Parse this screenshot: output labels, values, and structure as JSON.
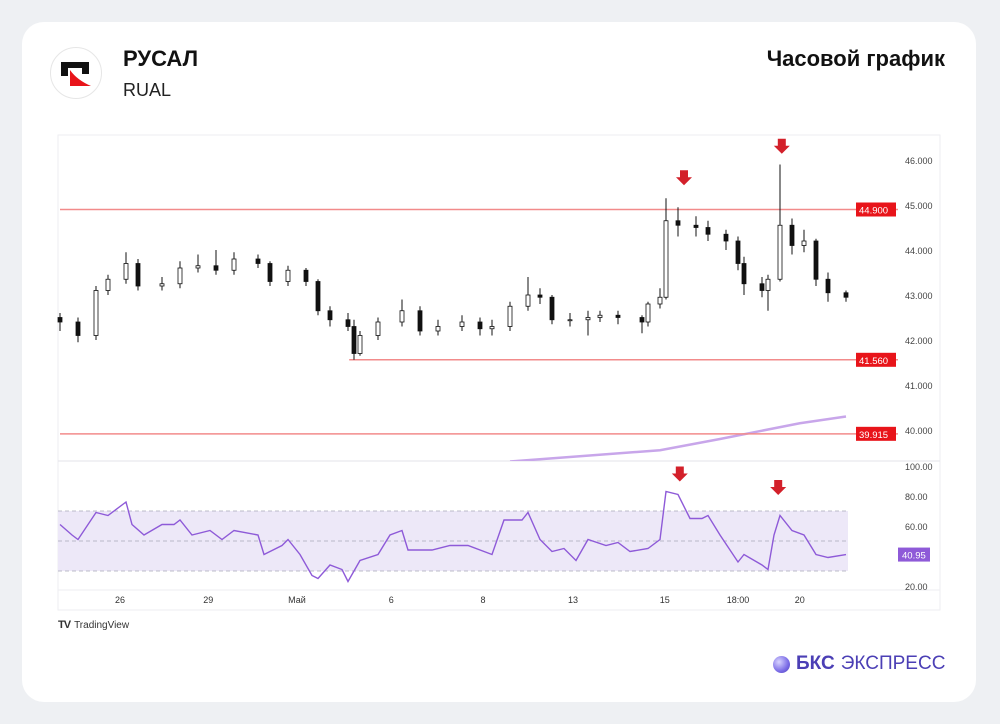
{
  "header": {
    "company": "РУСАЛ",
    "ticker": "RUAL",
    "chart_title": "Часовой график"
  },
  "footer": {
    "tradingview": "TradingView",
    "brand_bold": "БКС",
    "brand_rest": "ЭКСПРЕСС"
  },
  "colors": {
    "level_line": "#f28b8b",
    "level_label": "#e8141a",
    "rsi_line": "#8e5ad8",
    "ma_line": "#c8a6ea",
    "arrow": "#d3202a",
    "rsi_band": "#ede8f8"
  },
  "chart_data": {
    "type": "candlestick",
    "title": "Часовой график",
    "x_domain": [
      0,
      131
    ],
    "x_ticks": [
      {
        "t": 10,
        "label": "26"
      },
      {
        "t": 24.7,
        "label": "29"
      },
      {
        "t": 39.5,
        "label": "Май"
      },
      {
        "t": 55.2,
        "label": "6"
      },
      {
        "t": 70.5,
        "label": "8"
      },
      {
        "t": 85.5,
        "label": "13"
      },
      {
        "t": 100.8,
        "label": "15"
      },
      {
        "t": 113,
        "label": "18:00"
      },
      {
        "t": 123.3,
        "label": "20"
      }
    ],
    "price_axis": {
      "ylim": [
        39.4,
        46.55
      ],
      "ticks": [
        "46.000",
        "45.000",
        "44.000",
        "43.000",
        "42.000",
        "41.000",
        "40.000"
      ]
    },
    "candles": [
      [
        0,
        42.5,
        42.6,
        42.2,
        42.4
      ],
      [
        3,
        42.4,
        42.5,
        41.95,
        42.1
      ],
      [
        6,
        42.1,
        43.2,
        42.0,
        43.1
      ],
      [
        8,
        43.1,
        43.45,
        43.0,
        43.35
      ],
      [
        11,
        43.35,
        43.95,
        43.25,
        43.7
      ],
      [
        13,
        43.7,
        43.8,
        43.1,
        43.2
      ],
      [
        17,
        43.2,
        43.4,
        43.1,
        43.25
      ],
      [
        20,
        43.25,
        43.75,
        43.15,
        43.6
      ],
      [
        23,
        43.6,
        43.9,
        43.5,
        43.65
      ],
      [
        26,
        43.65,
        44.0,
        43.45,
        43.55
      ],
      [
        29,
        43.55,
        43.95,
        43.45,
        43.8
      ],
      [
        33,
        43.8,
        43.9,
        43.6,
        43.7
      ],
      [
        35,
        43.7,
        43.75,
        43.2,
        43.3
      ],
      [
        38,
        43.3,
        43.65,
        43.2,
        43.55
      ],
      [
        41,
        43.55,
        43.6,
        43.2,
        43.3
      ],
      [
        43,
        43.3,
        43.35,
        42.55,
        42.65
      ],
      [
        45,
        42.65,
        42.75,
        42.3,
        42.45
      ],
      [
        48,
        42.45,
        42.6,
        42.2,
        42.3
      ],
      [
        49,
        42.3,
        42.45,
        41.56,
        41.7
      ],
      [
        50,
        41.7,
        42.2,
        41.65,
        42.1
      ],
      [
        53,
        42.1,
        42.5,
        42.0,
        42.4
      ],
      [
        57,
        42.4,
        42.9,
        42.3,
        42.65
      ],
      [
        60,
        42.65,
        42.75,
        42.1,
        42.2
      ],
      [
        63,
        42.2,
        42.45,
        42.1,
        42.3
      ],
      [
        67,
        42.3,
        42.55,
        42.2,
        42.4
      ],
      [
        70,
        42.4,
        42.5,
        42.1,
        42.25
      ],
      [
        72,
        42.25,
        42.45,
        42.1,
        42.3
      ],
      [
        75,
        42.3,
        42.85,
        42.2,
        42.75
      ],
      [
        78,
        42.75,
        43.4,
        42.65,
        43.0
      ],
      [
        80,
        43.0,
        43.15,
        42.8,
        42.95
      ],
      [
        82,
        42.95,
        43.0,
        42.35,
        42.45
      ],
      [
        85,
        42.45,
        42.6,
        42.3,
        42.45
      ],
      [
        88,
        42.45,
        42.65,
        42.1,
        42.5
      ],
      [
        90,
        42.5,
        42.65,
        42.4,
        42.55
      ],
      [
        93,
        42.55,
        42.65,
        42.35,
        42.5
      ],
      [
        97,
        42.5,
        42.55,
        42.15,
        42.4
      ],
      [
        98,
        42.4,
        42.85,
        42.3,
        42.8
      ],
      [
        100,
        42.8,
        43.15,
        42.7,
        42.95
      ],
      [
        101,
        42.95,
        45.15,
        42.9,
        44.65
      ],
      [
        103,
        44.65,
        44.95,
        44.3,
        44.55
      ],
      [
        106,
        44.55,
        44.75,
        44.3,
        44.5
      ],
      [
        108,
        44.5,
        44.65,
        44.2,
        44.35
      ],
      [
        111,
        44.35,
        44.45,
        44.0,
        44.2
      ],
      [
        113,
        44.2,
        44.3,
        43.55,
        43.7
      ],
      [
        114,
        43.7,
        43.85,
        43.0,
        43.25
      ],
      [
        117,
        43.25,
        43.4,
        42.95,
        43.1
      ],
      [
        118,
        43.1,
        43.45,
        42.65,
        43.35
      ],
      [
        120,
        43.35,
        45.9,
        43.3,
        44.55
      ],
      [
        122,
        44.55,
        44.7,
        43.9,
        44.1
      ],
      [
        124,
        44.1,
        44.45,
        43.95,
        44.2
      ],
      [
        126,
        44.2,
        44.25,
        43.2,
        43.35
      ],
      [
        128,
        43.35,
        43.5,
        42.85,
        43.05
      ],
      [
        131,
        43.05,
        43.1,
        42.85,
        42.95
      ]
    ],
    "levels": [
      {
        "value": 44.9,
        "label": "44.900",
        "from_t": 0
      },
      {
        "value": 41.56,
        "label": "41.560",
        "from_t": 48.2
      },
      {
        "value": 39.915,
        "label": "39.915",
        "from_t": 0
      }
    ],
    "moving_average": [
      [
        75,
        39.3
      ],
      [
        100,
        39.55
      ],
      [
        110,
        39.8
      ],
      [
        123.3,
        40.15
      ],
      [
        131,
        40.3
      ]
    ],
    "signal_arrows": [
      {
        "t": 104,
        "value": 45.55
      },
      {
        "t": 120.3,
        "value": 46.25
      }
    ],
    "rsi": {
      "ylim": [
        20,
        100
      ],
      "ticks": [
        "100.00",
        "80.00",
        "60.00",
        "20.00"
      ],
      "band": [
        30,
        70
      ],
      "mid": 50,
      "last_label": "40.95",
      "values": [
        [
          0,
          61
        ],
        [
          2,
          54
        ],
        [
          3,
          51
        ],
        [
          6,
          69
        ],
        [
          8,
          67
        ],
        [
          11,
          76
        ],
        [
          12,
          61
        ],
        [
          14,
          54
        ],
        [
          17,
          61
        ],
        [
          19,
          61
        ],
        [
          20,
          64
        ],
        [
          22,
          54
        ],
        [
          25,
          57
        ],
        [
          27,
          51
        ],
        [
          29,
          57
        ],
        [
          33,
          54
        ],
        [
          34,
          41
        ],
        [
          37,
          47
        ],
        [
          38,
          51
        ],
        [
          40,
          41
        ],
        [
          42,
          27
        ],
        [
          43,
          25
        ],
        [
          45,
          34
        ],
        [
          47,
          31
        ],
        [
          48,
          23
        ],
        [
          50,
          37
        ],
        [
          53,
          41
        ],
        [
          55,
          54
        ],
        [
          57,
          57
        ],
        [
          58,
          44
        ],
        [
          62,
          44
        ],
        [
          65,
          47
        ],
        [
          68,
          47
        ],
        [
          72,
          41
        ],
        [
          74,
          64
        ],
        [
          77,
          64
        ],
        [
          78,
          69
        ],
        [
          80,
          51
        ],
        [
          82,
          43
        ],
        [
          84,
          45
        ],
        [
          86,
          37
        ],
        [
          88,
          51
        ],
        [
          91,
          47
        ],
        [
          93,
          49
        ],
        [
          95,
          43
        ],
        [
          98,
          45
        ],
        [
          100,
          51
        ],
        [
          101,
          83
        ],
        [
          103,
          81
        ],
        [
          105,
          65
        ],
        [
          107,
          65
        ],
        [
          108,
          67
        ],
        [
          110,
          54
        ],
        [
          113,
          36
        ],
        [
          114,
          41
        ],
        [
          117,
          34
        ],
        [
          118,
          31
        ],
        [
          119,
          54
        ],
        [
          120,
          67
        ],
        [
          122,
          57
        ],
        [
          124,
          54
        ],
        [
          126,
          41
        ],
        [
          128,
          39
        ],
        [
          131,
          40.95
        ]
      ],
      "signal_arrows": [
        {
          "t": 103.3,
          "value": 93
        },
        {
          "t": 119.7,
          "value": 84
        }
      ]
    }
  }
}
